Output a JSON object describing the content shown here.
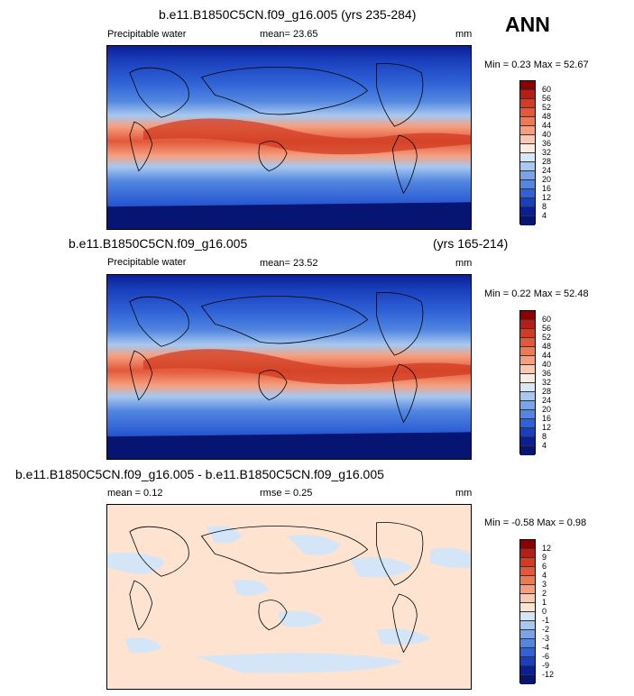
{
  "season": "ANN",
  "panel1": {
    "title": "b.e11.B1850C5CN.f09_g16.005 (yrs 235-284)",
    "variable": "Precipitable water",
    "mean": "mean=  23.65",
    "units": "mm",
    "minmax": "Min =   0.23 Max =  52.67",
    "levels": [
      "60",
      "56",
      "52",
      "48",
      "44",
      "40",
      "36",
      "32",
      "28",
      "24",
      "20",
      "16",
      "12",
      "8",
      "4"
    ]
  },
  "panel2": {
    "title": "b.e11.B1850C5CN.f09_g16.005",
    "years": "(yrs 165-214)",
    "variable": "Precipitable water",
    "mean": "mean=  23.52",
    "units": "mm",
    "minmax": "Min =   0.22 Max =  52.48",
    "levels": [
      "60",
      "56",
      "52",
      "48",
      "44",
      "40",
      "36",
      "32",
      "28",
      "24",
      "20",
      "16",
      "12",
      "8",
      "4"
    ]
  },
  "panel3": {
    "title": "b.e11.B1850C5CN.f09_g16.005 - b.e11.B1850C5CN.f09_g16.005",
    "mean": "mean =   0.12",
    "rmse": "rmse =   0.25",
    "units": "mm",
    "minmax": "Min =  -0.58 Max =   0.98",
    "levels": [
      "12",
      "9",
      "6",
      "4",
      "3",
      "2",
      "1",
      "0",
      "-1",
      "-2",
      "-3",
      "-4",
      "-6",
      "-9",
      "-12"
    ]
  },
  "colors": {
    "abs_palette": [
      "#8b0000",
      "#b51e13",
      "#d23c22",
      "#e2583a",
      "#ee7a54",
      "#f59f7f",
      "#fbc8b1",
      "#ffebe0",
      "#d8e6f6",
      "#a7c8ef",
      "#7aa4e8",
      "#5286e0",
      "#2f62d6",
      "#1a3fbd",
      "#0a1f95",
      "#061472"
    ],
    "diff_palette": [
      "#8b0000",
      "#b51e13",
      "#d23c22",
      "#e2583a",
      "#ee7a54",
      "#f59f7f",
      "#fbc8b1",
      "#fde3d0",
      "#d3e5f6",
      "#a7c8ef",
      "#7aa4e8",
      "#5286e0",
      "#2f62d6",
      "#1a3fbd",
      "#0a1f95",
      "#061472"
    ]
  }
}
